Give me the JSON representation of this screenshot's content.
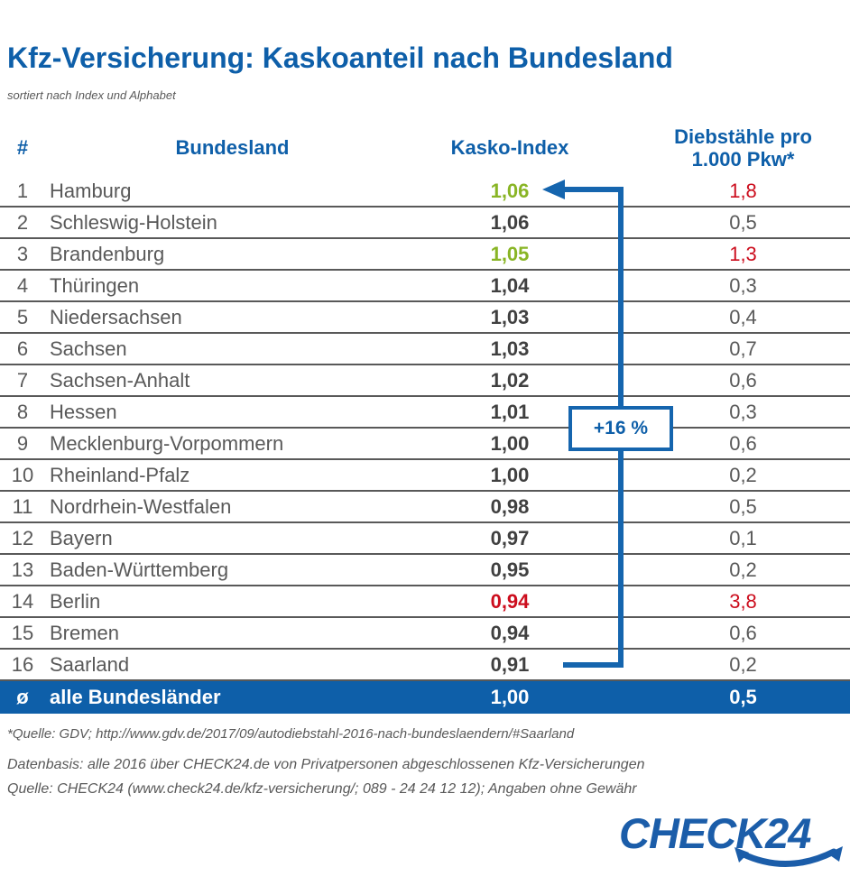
{
  "title": "Kfz-Versicherung: Kaskoanteil nach Bundesland",
  "subtitle": "sortiert nach Index und Alphabet",
  "table": {
    "headers": {
      "rank": "#",
      "state": "Bundesland",
      "index": "Kasko-Index",
      "thefts_line1": "Diebstähle pro",
      "thefts_line2": "1.000 Pkw*"
    },
    "rows": [
      {
        "rank": "1",
        "state": "Hamburg",
        "index": "1,06",
        "index_class": "green",
        "thefts": "1,8",
        "thefts_class": "red"
      },
      {
        "rank": "2",
        "state": "Schleswig-Holstein",
        "index": "1,06",
        "index_class": "",
        "thefts": "0,5",
        "thefts_class": ""
      },
      {
        "rank": "3",
        "state": "Brandenburg",
        "index": "1,05",
        "index_class": "green",
        "thefts": "1,3",
        "thefts_class": "red"
      },
      {
        "rank": "4",
        "state": "Thüringen",
        "index": "1,04",
        "index_class": "",
        "thefts": "0,3",
        "thefts_class": ""
      },
      {
        "rank": "5",
        "state": "Niedersachsen",
        "index": "1,03",
        "index_class": "",
        "thefts": "0,4",
        "thefts_class": ""
      },
      {
        "rank": "6",
        "state": "Sachsen",
        "index": "1,03",
        "index_class": "",
        "thefts": "0,7",
        "thefts_class": ""
      },
      {
        "rank": "7",
        "state": "Sachsen-Anhalt",
        "index": "1,02",
        "index_class": "",
        "thefts": "0,6",
        "thefts_class": ""
      },
      {
        "rank": "8",
        "state": "Hessen",
        "index": "1,01",
        "index_class": "",
        "thefts": "0,3",
        "thefts_class": ""
      },
      {
        "rank": "9",
        "state": "Mecklenburg-Vorpommern",
        "index": "1,00",
        "index_class": "",
        "thefts": "0,6",
        "thefts_class": ""
      },
      {
        "rank": "10",
        "state": "Rheinland-Pfalz",
        "index": "1,00",
        "index_class": "",
        "thefts": "0,2",
        "thefts_class": ""
      },
      {
        "rank": "11",
        "state": "Nordrhein-Westfalen",
        "index": "0,98",
        "index_class": "",
        "thefts": "0,5",
        "thefts_class": ""
      },
      {
        "rank": "12",
        "state": "Bayern",
        "index": "0,97",
        "index_class": "",
        "thefts": "0,1",
        "thefts_class": ""
      },
      {
        "rank": "13",
        "state": "Baden-Württemberg",
        "index": "0,95",
        "index_class": "",
        "thefts": "0,2",
        "thefts_class": ""
      },
      {
        "rank": "14",
        "state": "Berlin",
        "index": "0,94",
        "index_class": "red",
        "thefts": "3,8",
        "thefts_class": "red"
      },
      {
        "rank": "15",
        "state": "Bremen",
        "index": "0,94",
        "index_class": "",
        "thefts": "0,6",
        "thefts_class": ""
      },
      {
        "rank": "16",
        "state": "Saarland",
        "index": "0,91",
        "index_class": "",
        "thefts": "0,2",
        "thefts_class": ""
      }
    ],
    "summary": {
      "rank": "ø",
      "state": "alle Bundesländer",
      "index": "1,00",
      "thefts": "0,5"
    }
  },
  "annotation": {
    "label": "+16 %"
  },
  "footnotes": [
    "*Quelle: GDV; http://www.gdv.de/2017/09/autodiebstahl-2016-nach-bundeslaendern/#Saarland",
    "Datenbasis: alle 2016 über CHECK24.de von Privatpersonen abgeschlossenen Kfz-Versicherungen",
    "Quelle: CHECK24 (www.check24.de/kfz-versicherung/; 089 - 24 24 12 12); Angaben ohne Gewähr"
  ],
  "logo": {
    "text": "CHECK24"
  },
  "colors": {
    "brand_blue": "#0e5fa9",
    "arrow_blue": "#1565ae",
    "positive_green": "#89b525",
    "negative_red": "#cc0d1d",
    "row_text": "#595959",
    "value_text": "#404040"
  },
  "chart_data": {
    "type": "table",
    "title": "Kfz-Versicherung: Kaskoanteil nach Bundesland",
    "subtitle": "sortiert nach Index und Alphabet",
    "columns": [
      "#",
      "Bundesland",
      "Kasko-Index",
      "Diebstähle pro 1.000 Pkw*"
    ],
    "rows": [
      [
        1,
        "Hamburg",
        1.06,
        1.8
      ],
      [
        2,
        "Schleswig-Holstein",
        1.06,
        0.5
      ],
      [
        3,
        "Brandenburg",
        1.05,
        1.3
      ],
      [
        4,
        "Thüringen",
        1.04,
        0.3
      ],
      [
        5,
        "Niedersachsen",
        1.03,
        0.4
      ],
      [
        6,
        "Sachsen",
        1.03,
        0.7
      ],
      [
        7,
        "Sachsen-Anhalt",
        1.02,
        0.6
      ],
      [
        8,
        "Hessen",
        1.01,
        0.3
      ],
      [
        9,
        "Mecklenburg-Vorpommern",
        1.0,
        0.6
      ],
      [
        10,
        "Rheinland-Pfalz",
        1.0,
        0.2
      ],
      [
        11,
        "Nordrhein-Westfalen",
        0.98,
        0.5
      ],
      [
        12,
        "Bayern",
        0.97,
        0.1
      ],
      [
        13,
        "Baden-Württemberg",
        0.95,
        0.2
      ],
      [
        14,
        "Berlin",
        0.94,
        3.8
      ],
      [
        15,
        "Bremen",
        0.94,
        0.6
      ],
      [
        16,
        "Saarland",
        0.91,
        0.2
      ]
    ],
    "summary_row": [
      "ø",
      "alle Bundesländer",
      1.0,
      0.5
    ],
    "annotation": {
      "text": "+16 %",
      "from": "Saarland 0,91",
      "to": "Hamburg 1,06"
    }
  }
}
